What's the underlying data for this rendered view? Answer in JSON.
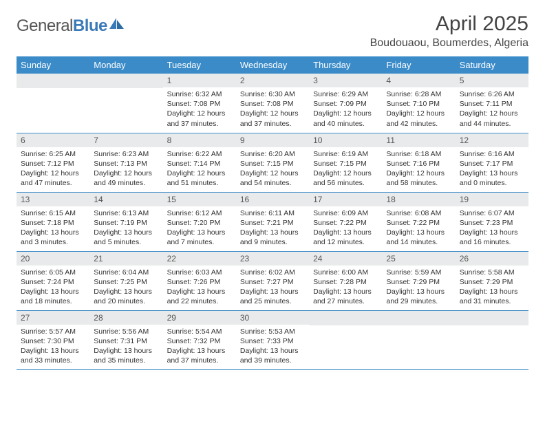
{
  "brand": {
    "part1": "General",
    "part2": "Blue"
  },
  "title": "April 2025",
  "location": "Boudouaou, Boumerdes, Algeria",
  "colors": {
    "header_bg": "#3b8bc8",
    "header_text": "#ffffff",
    "daybar_bg": "#e9eaeb",
    "row_border": "#3b8bc8",
    "text": "#333333",
    "logo_gray": "#555555",
    "logo_blue": "#3a7ab8"
  },
  "weekdays": [
    "Sunday",
    "Monday",
    "Tuesday",
    "Wednesday",
    "Thursday",
    "Friday",
    "Saturday"
  ],
  "weeks": [
    [
      null,
      null,
      {
        "n": "1",
        "sr": "Sunrise: 6:32 AM",
        "ss": "Sunset: 7:08 PM",
        "dl": "Daylight: 12 hours and 37 minutes."
      },
      {
        "n": "2",
        "sr": "Sunrise: 6:30 AM",
        "ss": "Sunset: 7:08 PM",
        "dl": "Daylight: 12 hours and 37 minutes."
      },
      {
        "n": "3",
        "sr": "Sunrise: 6:29 AM",
        "ss": "Sunset: 7:09 PM",
        "dl": "Daylight: 12 hours and 40 minutes."
      },
      {
        "n": "4",
        "sr": "Sunrise: 6:28 AM",
        "ss": "Sunset: 7:10 PM",
        "dl": "Daylight: 12 hours and 42 minutes."
      },
      {
        "n": "5",
        "sr": "Sunrise: 6:26 AM",
        "ss": "Sunset: 7:11 PM",
        "dl": "Daylight: 12 hours and 44 minutes."
      }
    ],
    [
      {
        "n": "6",
        "sr": "Sunrise: 6:25 AM",
        "ss": "Sunset: 7:12 PM",
        "dl": "Daylight: 12 hours and 47 minutes."
      },
      {
        "n": "7",
        "sr": "Sunrise: 6:23 AM",
        "ss": "Sunset: 7:13 PM",
        "dl": "Daylight: 12 hours and 49 minutes."
      },
      {
        "n": "8",
        "sr": "Sunrise: 6:22 AM",
        "ss": "Sunset: 7:14 PM",
        "dl": "Daylight: 12 hours and 51 minutes."
      },
      {
        "n": "9",
        "sr": "Sunrise: 6:20 AM",
        "ss": "Sunset: 7:15 PM",
        "dl": "Daylight: 12 hours and 54 minutes."
      },
      {
        "n": "10",
        "sr": "Sunrise: 6:19 AM",
        "ss": "Sunset: 7:15 PM",
        "dl": "Daylight: 12 hours and 56 minutes."
      },
      {
        "n": "11",
        "sr": "Sunrise: 6:18 AM",
        "ss": "Sunset: 7:16 PM",
        "dl": "Daylight: 12 hours and 58 minutes."
      },
      {
        "n": "12",
        "sr": "Sunrise: 6:16 AM",
        "ss": "Sunset: 7:17 PM",
        "dl": "Daylight: 13 hours and 0 minutes."
      }
    ],
    [
      {
        "n": "13",
        "sr": "Sunrise: 6:15 AM",
        "ss": "Sunset: 7:18 PM",
        "dl": "Daylight: 13 hours and 3 minutes."
      },
      {
        "n": "14",
        "sr": "Sunrise: 6:13 AM",
        "ss": "Sunset: 7:19 PM",
        "dl": "Daylight: 13 hours and 5 minutes."
      },
      {
        "n": "15",
        "sr": "Sunrise: 6:12 AM",
        "ss": "Sunset: 7:20 PM",
        "dl": "Daylight: 13 hours and 7 minutes."
      },
      {
        "n": "16",
        "sr": "Sunrise: 6:11 AM",
        "ss": "Sunset: 7:21 PM",
        "dl": "Daylight: 13 hours and 9 minutes."
      },
      {
        "n": "17",
        "sr": "Sunrise: 6:09 AM",
        "ss": "Sunset: 7:22 PM",
        "dl": "Daylight: 13 hours and 12 minutes."
      },
      {
        "n": "18",
        "sr": "Sunrise: 6:08 AM",
        "ss": "Sunset: 7:22 PM",
        "dl": "Daylight: 13 hours and 14 minutes."
      },
      {
        "n": "19",
        "sr": "Sunrise: 6:07 AM",
        "ss": "Sunset: 7:23 PM",
        "dl": "Daylight: 13 hours and 16 minutes."
      }
    ],
    [
      {
        "n": "20",
        "sr": "Sunrise: 6:05 AM",
        "ss": "Sunset: 7:24 PM",
        "dl": "Daylight: 13 hours and 18 minutes."
      },
      {
        "n": "21",
        "sr": "Sunrise: 6:04 AM",
        "ss": "Sunset: 7:25 PM",
        "dl": "Daylight: 13 hours and 20 minutes."
      },
      {
        "n": "22",
        "sr": "Sunrise: 6:03 AM",
        "ss": "Sunset: 7:26 PM",
        "dl": "Daylight: 13 hours and 22 minutes."
      },
      {
        "n": "23",
        "sr": "Sunrise: 6:02 AM",
        "ss": "Sunset: 7:27 PM",
        "dl": "Daylight: 13 hours and 25 minutes."
      },
      {
        "n": "24",
        "sr": "Sunrise: 6:00 AM",
        "ss": "Sunset: 7:28 PM",
        "dl": "Daylight: 13 hours and 27 minutes."
      },
      {
        "n": "25",
        "sr": "Sunrise: 5:59 AM",
        "ss": "Sunset: 7:29 PM",
        "dl": "Daylight: 13 hours and 29 minutes."
      },
      {
        "n": "26",
        "sr": "Sunrise: 5:58 AM",
        "ss": "Sunset: 7:29 PM",
        "dl": "Daylight: 13 hours and 31 minutes."
      }
    ],
    [
      {
        "n": "27",
        "sr": "Sunrise: 5:57 AM",
        "ss": "Sunset: 7:30 PM",
        "dl": "Daylight: 13 hours and 33 minutes."
      },
      {
        "n": "28",
        "sr": "Sunrise: 5:56 AM",
        "ss": "Sunset: 7:31 PM",
        "dl": "Daylight: 13 hours and 35 minutes."
      },
      {
        "n": "29",
        "sr": "Sunrise: 5:54 AM",
        "ss": "Sunset: 7:32 PM",
        "dl": "Daylight: 13 hours and 37 minutes."
      },
      {
        "n": "30",
        "sr": "Sunrise: 5:53 AM",
        "ss": "Sunset: 7:33 PM",
        "dl": "Daylight: 13 hours and 39 minutes."
      },
      null,
      null,
      null
    ]
  ]
}
